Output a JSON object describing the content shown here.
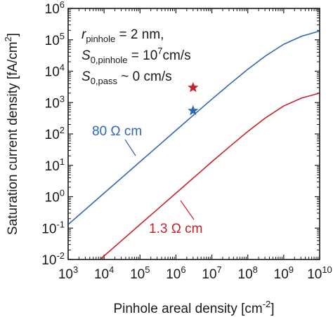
{
  "chart_data": {
    "type": "line",
    "xlabel": "Pinhole areal density [cm",
    "xlabel_sup": "-2",
    "xlabel_end": "]",
    "ylabel": "Saturation current density [fA/cm",
    "ylabel_sup": "2",
    "ylabel_end": "]",
    "xscale": "log",
    "yscale": "log",
    "xlim": [
      1000,
      10000000000
    ],
    "ylim": [
      0.01,
      1000000
    ],
    "x_tick_labels": [
      {
        "value": 1000,
        "base": "10",
        "exp": "3"
      },
      {
        "value": 10000,
        "base": "10",
        "exp": "4"
      },
      {
        "value": 100000,
        "base": "10",
        "exp": "5"
      },
      {
        "value": 1000000,
        "base": "10",
        "exp": "6"
      },
      {
        "value": 10000000,
        "base": "10",
        "exp": "7"
      },
      {
        "value": 100000000,
        "base": "10",
        "exp": "8"
      },
      {
        "value": 1000000000,
        "base": "10",
        "exp": "9"
      },
      {
        "value": 10000000000,
        "base": "10",
        "exp": "10"
      }
    ],
    "y_tick_labels": [
      {
        "value": 0.01,
        "base": "10",
        "exp": "-2"
      },
      {
        "value": 0.1,
        "base": "10",
        "exp": "-1"
      },
      {
        "value": 1,
        "base": "10",
        "exp": "0"
      },
      {
        "value": 10,
        "base": "10",
        "exp": "1"
      },
      {
        "value": 100,
        "base": "10",
        "exp": "2"
      },
      {
        "value": 1000,
        "base": "10",
        "exp": "3"
      },
      {
        "value": 10000,
        "base": "10",
        "exp": "4"
      },
      {
        "value": 100000,
        "base": "10",
        "exp": "5"
      },
      {
        "value": 1000000,
        "base": "10",
        "exp": "6"
      }
    ],
    "series": [
      {
        "name": "80 Ω cm",
        "color": "#2f66b3",
        "x": [
          1000,
          3162,
          10000,
          31623,
          100000,
          316228,
          1000000,
          3162278,
          10000000,
          31622777,
          100000000,
          316227766,
          1000000000,
          3162277660,
          10000000000
        ],
        "y": [
          0.13,
          0.41,
          1.3,
          4.1,
          13,
          41,
          130,
          410,
          1280,
          3900,
          11500,
          31000,
          72000,
          130000,
          190000
        ]
      },
      {
        "name": "1.3 Ω cm",
        "color": "#c8202a",
        "x": [
          8000,
          10000,
          31623,
          100000,
          316228,
          1000000,
          3162278,
          10000000,
          31622777,
          100000000,
          316227766,
          1000000000,
          3162277660,
          10000000000
        ],
        "y": [
          0.0105,
          0.013,
          0.041,
          0.13,
          0.41,
          1.3,
          4.1,
          13,
          40,
          120,
          330,
          780,
          1400,
          2000
        ]
      }
    ],
    "markers": [
      {
        "shape": "star",
        "color": "#c8202a",
        "x": 3000000,
        "y": 3000
      },
      {
        "shape": "star",
        "color": "#2f66b3",
        "x": 3000000,
        "y": 550
      }
    ],
    "annotations": {
      "params": [
        {
          "symbol": "r",
          "sub": "pinhole",
          "text": " = 2 nm,"
        },
        {
          "symbol": "S",
          "sub": "0,pinhole",
          "text": " = 10",
          "sup": "7",
          "after": "cm/s"
        },
        {
          "symbol": "S",
          "sub": "0,pass",
          "text": " ~ 0 cm/s"
        }
      ],
      "blue_label": "80 Ω cm",
      "red_label": "1.3 Ω cm"
    }
  }
}
